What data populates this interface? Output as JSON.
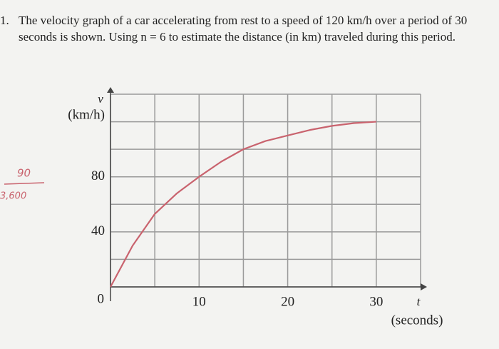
{
  "problem": {
    "number": "1.",
    "lines": [
      "The velocity graph of a car accelerating from rest to a speed of 120 km/h over a period of 30",
      "seconds is shown. Using n = 6 to estimate the distance (in km) traveled during this period."
    ]
  },
  "handwriting": [
    "90",
    "3,600"
  ],
  "chart_data": {
    "type": "line",
    "y_label": "v",
    "y_unit": "(km/h)",
    "x_label": "t",
    "x_unit": "(seconds)",
    "x": [
      0,
      2.5,
      5,
      7.5,
      10,
      12.5,
      15,
      17.5,
      20,
      22.5,
      25,
      27.5,
      30
    ],
    "series": [
      {
        "color": "#c9636e",
        "values": [
          0,
          30,
          53,
          68,
          80,
          91,
          100,
          106,
          110,
          114,
          117,
          119,
          120
        ]
      }
    ],
    "xlim": [
      0,
      35
    ],
    "ylim": [
      0,
      140
    ],
    "xticks": [
      10,
      20,
      30
    ],
    "yticks": [
      0,
      40,
      80
    ],
    "xgrid": [
      0,
      5,
      10,
      15,
      20,
      25,
      30,
      35
    ],
    "ygrid": [
      0,
      20,
      40,
      60,
      80,
      100,
      120,
      140
    ]
  }
}
